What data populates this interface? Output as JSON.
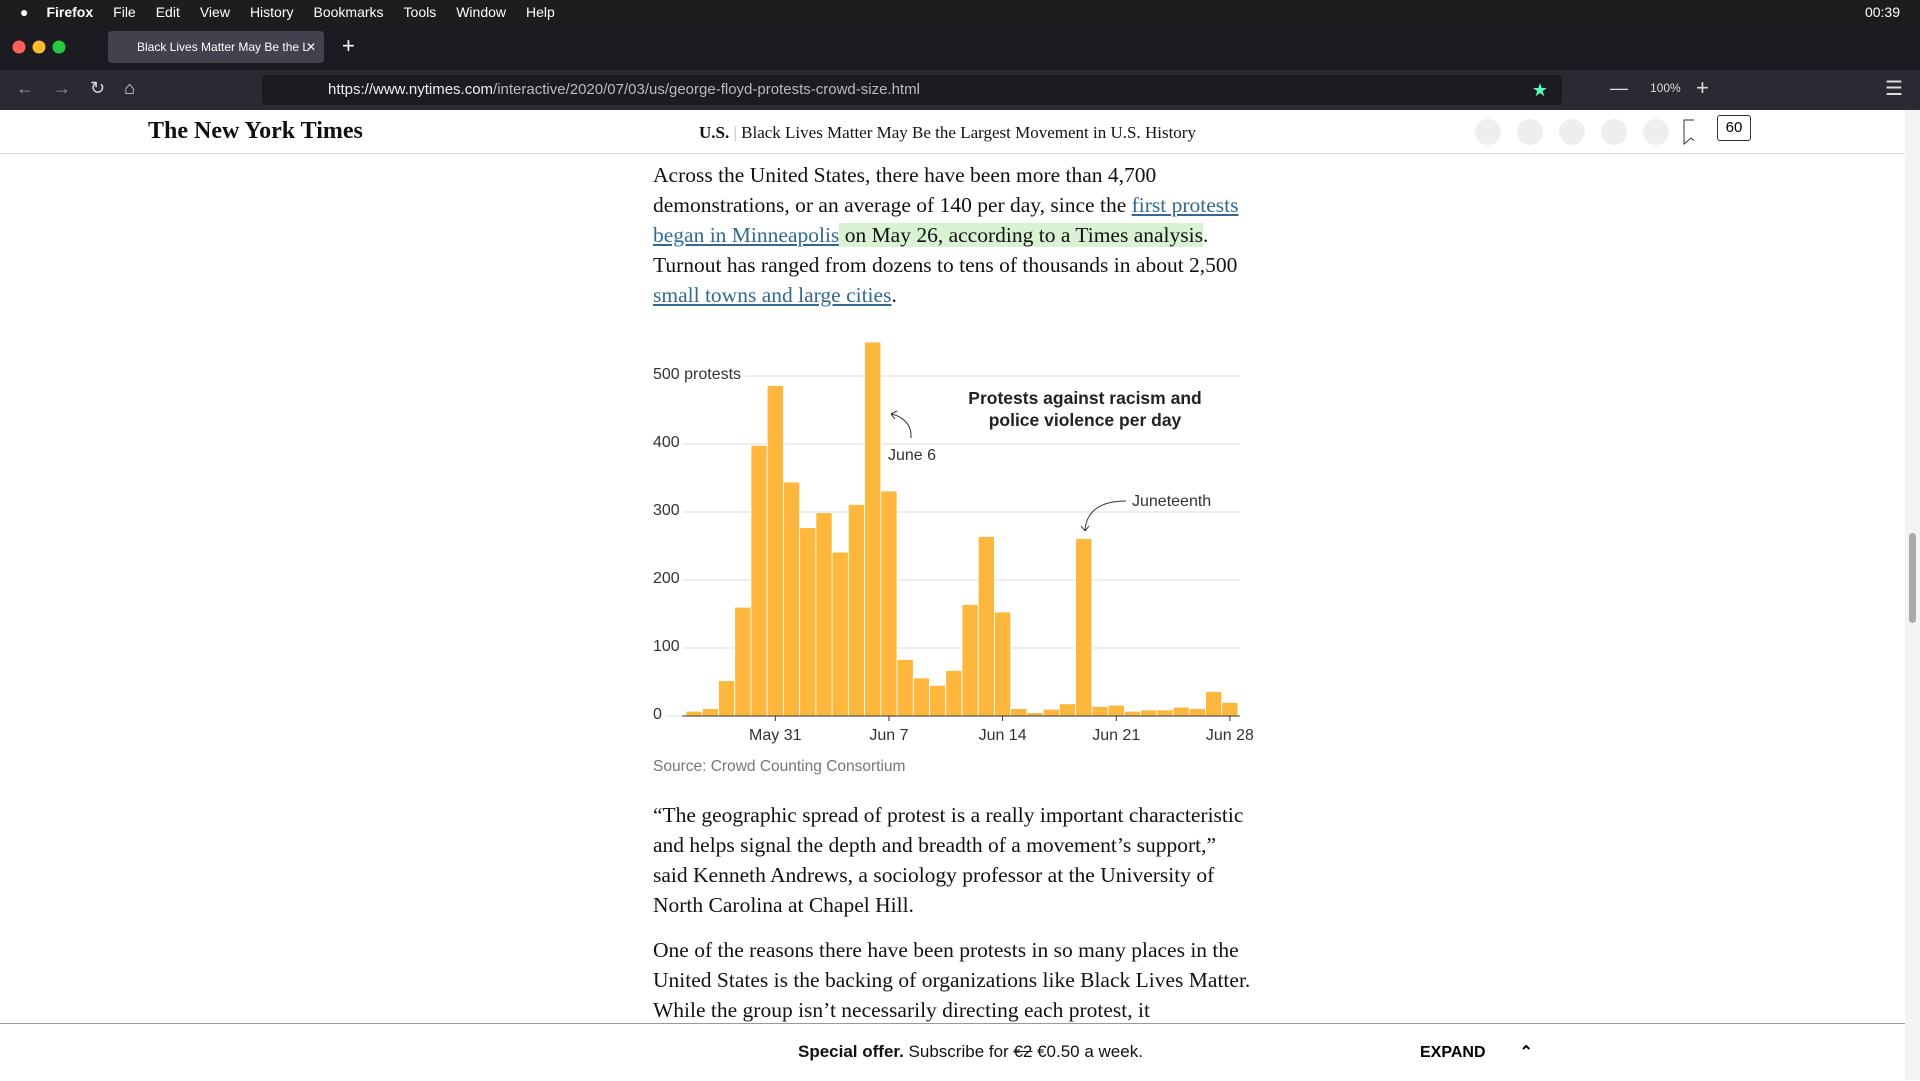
{
  "menu_bar": {
    "app": "Firefox",
    "items": [
      "File",
      "Edit",
      "View",
      "History",
      "Bookmarks",
      "Tools",
      "Window",
      "Help"
    ],
    "clock": "00:39"
  },
  "tab": {
    "title": "Black Lives Matter May Be the L"
  },
  "toolbar": {
    "url_host": "https://www.nytimes.com",
    "url_path": "/interactive/2020/07/03/us/george-floyd-protests-crowd-size.html",
    "zoom": "100%"
  },
  "site_header": {
    "logo": "The New York Times",
    "section": "U.S.",
    "headline": "Black Lives Matter May Be the Largest Movement in U.S. History",
    "comments": "60"
  },
  "article": {
    "paragraph_1": [
      "Across the United States, there have been more than 4,700 demonstrations, or an average of 140 per day, since the ",
      "first protests began in Minneapolis",
      " on May 26, according to a Times analysis",
      ". Turnout has ranged from dozens to tens of thousands in about 2,500 ",
      "small towns and large cities",
      "."
    ],
    "paragraph_2": "“The geographic spread of protest is a really important characteristic and helps signal the depth and breadth of a movement’s support,” said Kenneth Andrews, a sociology professor at the University of North Carolina at Chapel Hill.",
    "paragraph_3": "One of the reasons there have been protests in so many places in the United States is the backing of organizations like Black Lives Matter. While the group isn’t necessarily directing each protest, it"
  },
  "chart_data": {
    "type": "bar",
    "title": "Protests against racism and police violence per day",
    "categories": [
      null,
      null,
      null,
      null,
      null,
      "May 31",
      null,
      null,
      null,
      null,
      null,
      null,
      "Jun 7",
      null,
      null,
      null,
      null,
      null,
      null,
      "Jun 14",
      null,
      null,
      null,
      null,
      null,
      null,
      "Jun 21",
      null,
      null,
      null,
      null,
      null,
      null,
      "Jun 28"
    ],
    "values": [
      7,
      11,
      52,
      160,
      398,
      486,
      344,
      277,
      299,
      241,
      311,
      550,
      331,
      83,
      56,
      45,
      67,
      164,
      264,
      153,
      11,
      5,
      10,
      18,
      261,
      14,
      16,
      7,
      9,
      9,
      13,
      11,
      36,
      20
    ],
    "color": "#fdb73d",
    "ylim": [
      0,
      550
    ],
    "yticks": [
      0,
      100,
      200,
      300,
      400,
      {
        "value": 500,
        "label": "500 protests"
      }
    ],
    "grid": true,
    "annotations": [
      "June 6",
      "Juneteenth"
    ],
    "source": "Source: Crowd Counting Consortium"
  },
  "subscribe_bar": {
    "lead": "Special offer.",
    "text": " Subscribe for ",
    "old_price": "€2",
    "new_price": " €0.50 a week.",
    "button": "EXPAND"
  }
}
